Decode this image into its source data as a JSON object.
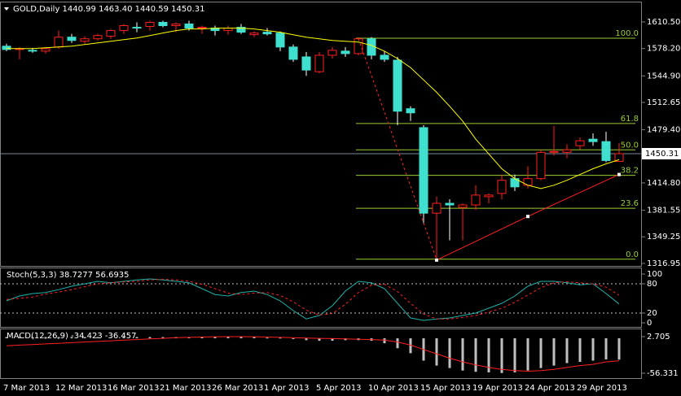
{
  "chart_data": [
    {
      "type": "candlestick",
      "title": "GOLD,Daily  1440.99 1463.40 1440.59 1450.31",
      "categories": [
        "7 Mar 2013",
        null,
        null,
        null,
        "12 Mar 2013",
        null,
        null,
        null,
        "16 Mar 2013",
        null,
        null,
        null,
        "21 Mar 2013",
        null,
        null,
        null,
        "26 Mar 2013",
        null,
        null,
        null,
        "1 Apr 2013",
        null,
        null,
        null,
        "5 Apr 2013",
        null,
        null,
        null,
        "10 Apr 2013",
        null,
        null,
        null,
        "15 Apr 2013",
        null,
        null,
        null,
        "19 Apr 2013",
        null,
        null,
        null,
        "24 Apr 2013",
        null,
        null,
        null,
        "29 Apr 2013",
        null,
        null,
        null
      ],
      "open": [
        1581,
        1577,
        1576,
        1575,
        1580,
        1592,
        1587,
        1590,
        1593,
        1600,
        1604,
        1605,
        1610,
        1606,
        1608,
        1603,
        1603,
        1600,
        1604,
        1595,
        1598,
        1597,
        1580,
        1568,
        1550,
        1570,
        1575,
        1572,
        1590,
        1570,
        1564,
        1505,
        1482,
        1378,
        1390,
        1385,
        1388,
        1398,
        1402,
        1420,
        1412,
        1420,
        1452,
        1452,
        1460,
        1468,
        1465,
        1440.99
      ],
      "high": [
        1584,
        1580,
        1579,
        1580,
        1600,
        1596,
        1593,
        1596,
        1602,
        1608,
        1610,
        1612,
        1612,
        1610,
        1612,
        1606,
        1606,
        1606,
        1608,
        1599,
        1603,
        1599,
        1583,
        1574,
        1574,
        1580,
        1580,
        1592,
        1592,
        1575,
        1568,
        1508,
        1485,
        1398,
        1395,
        1390,
        1412,
        1402,
        1425,
        1425,
        1435,
        1455,
        1484,
        1462,
        1470,
        1475,
        1477,
        1463.4
      ],
      "low": [
        1575,
        1565,
        1573,
        1572,
        1578,
        1585,
        1584,
        1588,
        1590,
        1596,
        1598,
        1600,
        1604,
        1598,
        1600,
        1596,
        1594,
        1595,
        1596,
        1592,
        1594,
        1575,
        1562,
        1545,
        1548,
        1566,
        1568,
        1570,
        1565,
        1562,
        1485,
        1490,
        1365,
        1321,
        1345,
        1345,
        1382,
        1390,
        1395,
        1405,
        1408,
        1418,
        1448,
        1445,
        1455,
        1460,
        1440,
        1440.59
      ],
      "close": [
        1577,
        1578,
        1575,
        1578,
        1592,
        1588,
        1590,
        1594,
        1600,
        1606,
        1603,
        1610,
        1606,
        1608,
        1603,
        1604,
        1600,
        1603,
        1598,
        1597,
        1596,
        1580,
        1565,
        1552,
        1570,
        1576,
        1572,
        1590,
        1570,
        1565,
        1502,
        1500,
        1378,
        1390,
        1388,
        1388,
        1400,
        1400,
        1418,
        1410,
        1420,
        1452,
        1453,
        1455,
        1466,
        1465,
        1442,
        1450.31
      ],
      "up_color": "#ff2020",
      "down_color": "#40e0d0",
      "ma": {
        "color": "#ffff00",
        "values": [
          1578,
          1578,
          1578,
          1579,
          1580,
          1581,
          1583,
          1585,
          1587,
          1589,
          1591,
          1594,
          1597,
          1600,
          1602,
          1602,
          1603,
          1603,
          1603,
          1602,
          1600,
          1598,
          1595,
          1592,
          1590,
          1588,
          1587,
          1586,
          1582,
          1575,
          1566,
          1555,
          1540,
          1525,
          1508,
          1490,
          1468,
          1450,
          1432,
          1420,
          1412,
          1408,
          1412,
          1418,
          1425,
          1432,
          1438,
          1443
        ]
      },
      "fib_color": "#9acd32",
      "fib_levels": [
        {
          "label": "100.0",
          "value": 1590.7
        },
        {
          "label": "61.8",
          "value": 1487
        },
        {
          "label": "50.0",
          "value": 1455
        },
        {
          "label": "38.2",
          "value": 1424
        },
        {
          "label": "23.6",
          "value": 1384
        },
        {
          "label": "0.0",
          "value": 1322
        }
      ],
      "lines": [
        {
          "color": "#ff2020",
          "dash": true,
          "x": [
            27,
            33
          ],
          "values": [
            1590,
            1321
          ]
        },
        {
          "color": "#ff2020",
          "dash": false,
          "x": [
            33,
            40,
            47
          ],
          "values": [
            1321,
            1374,
            1425
          ]
        }
      ],
      "last_price": 1450.31,
      "ylim": [
        1313.9,
        1634.2
      ],
      "yticks": [
        {
          "value": 1610.5,
          "label": "1610.50"
        },
        {
          "value": 1578.2,
          "label": "1578.20"
        },
        {
          "value": 1544.9,
          "label": "1544.90"
        },
        1512.65,
        {
          "value": 1479.4,
          "label": "1479.40"
        },
        {
          "value": 1414.8,
          "label": "1414.80"
        },
        1381.55,
        1349.25,
        1316.95
      ]
    },
    {
      "type": "stochastic",
      "title": "Stoch(5,3,3) 38.7277 56.6935",
      "series": [
        {
          "color": "#20b2aa",
          "dash": false,
          "values": [
            45,
            55,
            60,
            62,
            68,
            75,
            80,
            85,
            82,
            85,
            88,
            90,
            88,
            85,
            82,
            70,
            58,
            55,
            62,
            65,
            58,
            45,
            25,
            8,
            15,
            35,
            65,
            85,
            82,
            70,
            40,
            10,
            5,
            8,
            10,
            15,
            20,
            30,
            40,
            55,
            75,
            85,
            85,
            82,
            78,
            80,
            60,
            38.7277
          ]
        },
        {
          "color": "#ff2020",
          "dash": true,
          "values": [
            48,
            50,
            53,
            59,
            63,
            68,
            74,
            80,
            82,
            84,
            85,
            88,
            89,
            88,
            85,
            79,
            70,
            61,
            58,
            61,
            62,
            56,
            43,
            26,
            16,
            19,
            38,
            62,
            77,
            79,
            64,
            40,
            18,
            8,
            8,
            11,
            15,
            22,
            30,
            42,
            57,
            72,
            82,
            84,
            82,
            80,
            73,
            56.6935
          ]
        }
      ],
      "levels": [
        80,
        20
      ],
      "ylim": [
        -10,
        111.7
      ],
      "yticks": [
        100,
        80,
        20,
        0
      ]
    },
    {
      "type": "macd",
      "title": "MACD(12,26,9) -34.423 -36.457",
      "histogram": {
        "color": "#c0c0c0",
        "values": [
          2,
          2,
          2,
          2,
          2,
          2,
          2,
          2,
          2,
          2,
          2,
          2,
          2,
          2,
          2,
          2,
          2,
          2,
          2,
          2,
          1,
          1,
          -1,
          -3,
          -4,
          -4,
          -3,
          -3,
          -4,
          -8,
          -16,
          -24,
          -36,
          -44,
          -48,
          -52,
          -54,
          -55,
          -56,
          -55,
          -52,
          -48,
          -44,
          -40,
          -38,
          -36,
          -34,
          -34.423
        ]
      },
      "signal": {
        "color": "#ff2020",
        "values": [
          -12,
          -11,
          -10,
          -9,
          -8,
          -7,
          -6,
          -5,
          -4,
          -3,
          -2,
          -1,
          0,
          1,
          1.5,
          2,
          2.5,
          2.7,
          2.7,
          2.5,
          2,
          1.5,
          1,
          0.5,
          0,
          -0.5,
          -1,
          -1.5,
          -2,
          -3,
          -6,
          -11,
          -18,
          -25,
          -32,
          -38,
          -43,
          -47,
          -50,
          -52,
          -53,
          -52,
          -50,
          -47,
          -44,
          -42,
          -38,
          -36.457
        ]
      },
      "ylim": [
        -64.2,
        14.5
      ],
      "yticks": [
        2.705,
        -56.331
      ]
    }
  ]
}
